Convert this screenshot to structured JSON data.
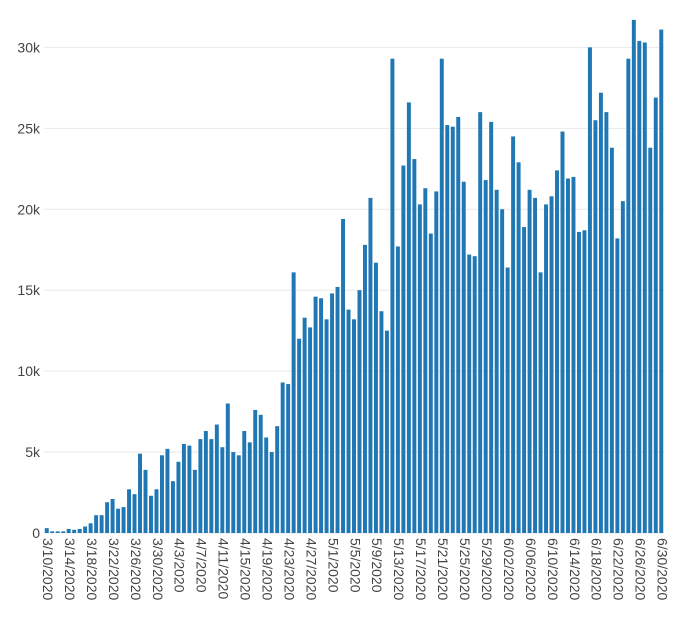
{
  "chart_data": {
    "type": "bar",
    "title": "",
    "xlabel": "",
    "ylabel": "",
    "bar_color": "#1f77b4",
    "grid_color": "#e8e8e8",
    "grid": true,
    "ylim": [
      0,
      32000
    ],
    "y_ticks": [
      {
        "value": 0,
        "label": "0"
      },
      {
        "value": 5000,
        "label": "5k"
      },
      {
        "value": 10000,
        "label": "10k"
      },
      {
        "value": 15000,
        "label": "15k"
      },
      {
        "value": 20000,
        "label": "20k"
      },
      {
        "value": 25000,
        "label": "25k"
      },
      {
        "value": 30000,
        "label": "30k"
      }
    ],
    "x_tick_labels": [
      "3/10/2020",
      "3/14/2020",
      "3/18/2020",
      "3/22/2020",
      "3/26/2020",
      "3/30/2020",
      "4/3/2020",
      "4/7/2020",
      "4/11/2020",
      "4/15/2020",
      "4/19/2020",
      "4/23/2020",
      "4/27/2020",
      "5/1/2020",
      "5/5/2020",
      "5/9/2020",
      "5/13/2020",
      "5/17/2020",
      "5/21/2020",
      "5/25/2020",
      "5/29/2020",
      "6/02/2020",
      "6/06/2020",
      "6/10/2020",
      "6/14/2020",
      "6/18/2020",
      "6/22/2020",
      "6/26/2020",
      "6/30/2020"
    ],
    "x_tick_every": 4,
    "values": [
      300,
      100,
      100,
      100,
      250,
      200,
      250,
      400,
      600,
      1100,
      1100,
      1900,
      2100,
      1500,
      1600,
      2700,
      2400,
      4900,
      3900,
      2300,
      2700,
      4800,
      5200,
      3200,
      4400,
      5500,
      5400,
      3900,
      5800,
      6300,
      5800,
      6700,
      5300,
      8000,
      5000,
      4800,
      6300,
      5600,
      7600,
      7300,
      5900,
      5000,
      6600,
      9300,
      9200,
      16100,
      12000,
      13300,
      12700,
      14600,
      14500,
      13200,
      14800,
      15200,
      19400,
      13800,
      13200,
      15000,
      17800,
      20700,
      16700,
      13700,
      12500,
      29300,
      17700,
      22700,
      26600,
      23100,
      20300,
      21300,
      18500,
      21100,
      29300,
      25200,
      25100,
      25700,
      21700,
      17200,
      17100,
      26000,
      21800,
      25400,
      21200,
      20000,
      16400,
      24500,
      22900,
      18900,
      21200,
      20700,
      16100,
      20300,
      20800,
      22400,
      24800,
      21900,
      22000,
      18600,
      18700,
      30000,
      25500,
      27200,
      26000,
      23800,
      18200,
      20500,
      29300,
      31700,
      30400,
      30300,
      23800,
      26900,
      31100
    ]
  }
}
